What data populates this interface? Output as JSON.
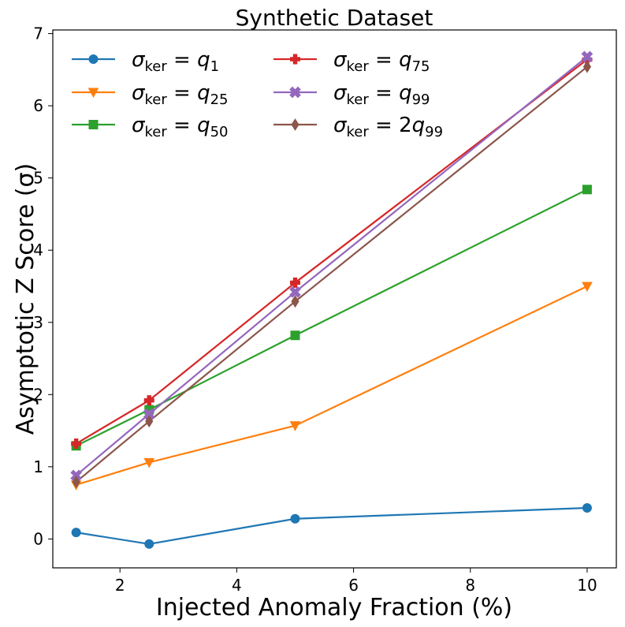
{
  "chart_data": {
    "type": "line",
    "title": "Synthetic Dataset",
    "xlabel": "Injected Anomaly Fraction (%)",
    "ylabel": "Asymptotic Z Score (σ)",
    "xlim": [
      0.85,
      10.5
    ],
    "ylim": [
      -0.4,
      7.05
    ],
    "xticks": [
      2,
      4,
      6,
      8,
      10
    ],
    "yticks": [
      0,
      1,
      2,
      3,
      4,
      5,
      6,
      7
    ],
    "x": [
      1.25,
      2.5,
      5,
      10
    ],
    "legend_location": "upper-left",
    "series": [
      {
        "name": "σ_ker = q_1",
        "label_base": "q",
        "label_sub": "1",
        "label_prefix": "",
        "color": "#1f77b4",
        "marker": "circle",
        "values": [
          0.09,
          -0.07,
          0.28,
          0.43
        ]
      },
      {
        "name": "σ_ker = q_25",
        "label_base": "q",
        "label_sub": "25",
        "label_prefix": "",
        "color": "#ff7f0e",
        "marker": "triangle-down",
        "values": [
          0.75,
          1.06,
          1.57,
          3.5
        ]
      },
      {
        "name": "σ_ker = q_50",
        "label_base": "q",
        "label_sub": "50",
        "label_prefix": "",
        "color": "#2ca02c",
        "marker": "square",
        "values": [
          1.29,
          1.79,
          2.82,
          4.84
        ]
      },
      {
        "name": "σ_ker = q_75",
        "label_base": "q",
        "label_sub": "75",
        "label_prefix": "",
        "color": "#d62728",
        "marker": "plus",
        "values": [
          1.32,
          1.92,
          3.55,
          6.64
        ]
      },
      {
        "name": "σ_ker = q_99",
        "label_base": "q",
        "label_sub": "99",
        "label_prefix": "",
        "color": "#9467bd",
        "marker": "x",
        "values": [
          0.88,
          1.73,
          3.42,
          6.68
        ]
      },
      {
        "name": "σ_ker = 2q_99",
        "label_base": "q",
        "label_sub": "99",
        "label_prefix": "2",
        "color": "#8c564b",
        "marker": "diamond",
        "values": [
          0.79,
          1.63,
          3.29,
          6.54
        ]
      }
    ]
  }
}
